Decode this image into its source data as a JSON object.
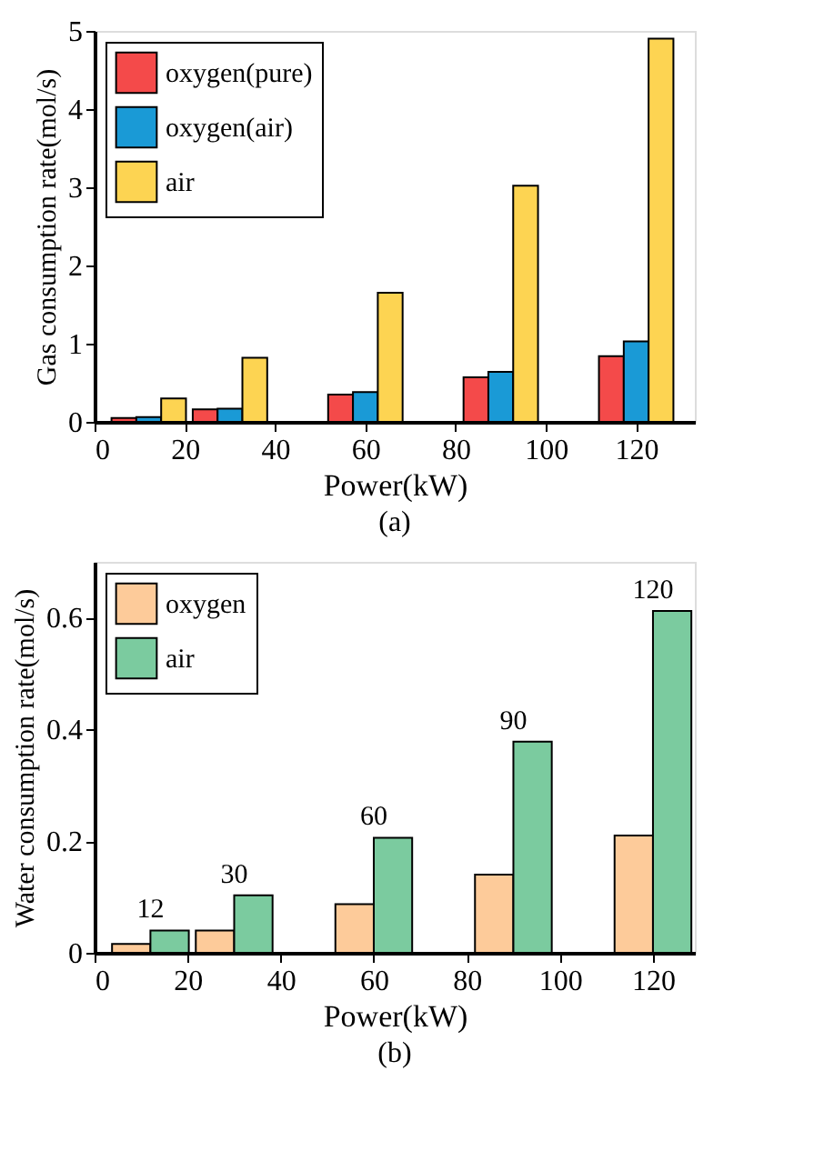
{
  "chart_data": [
    {
      "type": "bar",
      "title": "(a)",
      "xlabel": "Power(kW)",
      "ylabel": "Gas consumption rate(mol/s)",
      "x": [
        12,
        30,
        60,
        90,
        120
      ],
      "series": [
        {
          "name": "oxygen(pure)",
          "color": "#f44a4a",
          "values": [
            0.05,
            0.16,
            0.35,
            0.57,
            0.84
          ]
        },
        {
          "name": "oxygen(air)",
          "color": "#1a9ad6",
          "values": [
            0.06,
            0.17,
            0.38,
            0.64,
            1.03
          ]
        },
        {
          "name": "air",
          "color": "#fdd452",
          "values": [
            0.3,
            0.82,
            1.65,
            3.02,
            4.9
          ]
        }
      ],
      "xlim": [
        0,
        133
      ],
      "xticks": [
        0,
        20,
        40,
        60,
        80,
        100,
        120
      ],
      "ylim": [
        0,
        5
      ],
      "yticks": [
        0,
        1,
        2,
        3,
        4,
        5
      ],
      "grid": false,
      "legend": "top left"
    },
    {
      "type": "bar",
      "title": "(b)",
      "xlabel": "Power(kW)",
      "ylabel": "Water consumption rate(mol/s)",
      "x": [
        12,
        30,
        60,
        90,
        120
      ],
      "series": [
        {
          "name": "oxygen",
          "color": "#fdcb9a",
          "values": [
            0.016,
            0.04,
            0.087,
            0.14,
            0.21
          ]
        },
        {
          "name": "air",
          "color": "#7bcb9f",
          "values": [
            0.04,
            0.103,
            0.206,
            0.378,
            0.612
          ]
        }
      ],
      "annotations": [
        {
          "text": "12",
          "x": 12,
          "y": 0.04
        },
        {
          "text": "30",
          "x": 30,
          "y": 0.103
        },
        {
          "text": "60",
          "x": 60,
          "y": 0.206
        },
        {
          "text": "90",
          "x": 90,
          "y": 0.378
        },
        {
          "text": "120",
          "x": 120,
          "y": 0.612
        }
      ],
      "xlim": [
        0,
        129
      ],
      "xticks": [
        0,
        20,
        40,
        60,
        80,
        100,
        120
      ],
      "ylim": [
        0,
        0.7
      ],
      "yticks": [
        0,
        0.2,
        0.4,
        0.6
      ],
      "grid": false,
      "legend": "top left"
    }
  ]
}
